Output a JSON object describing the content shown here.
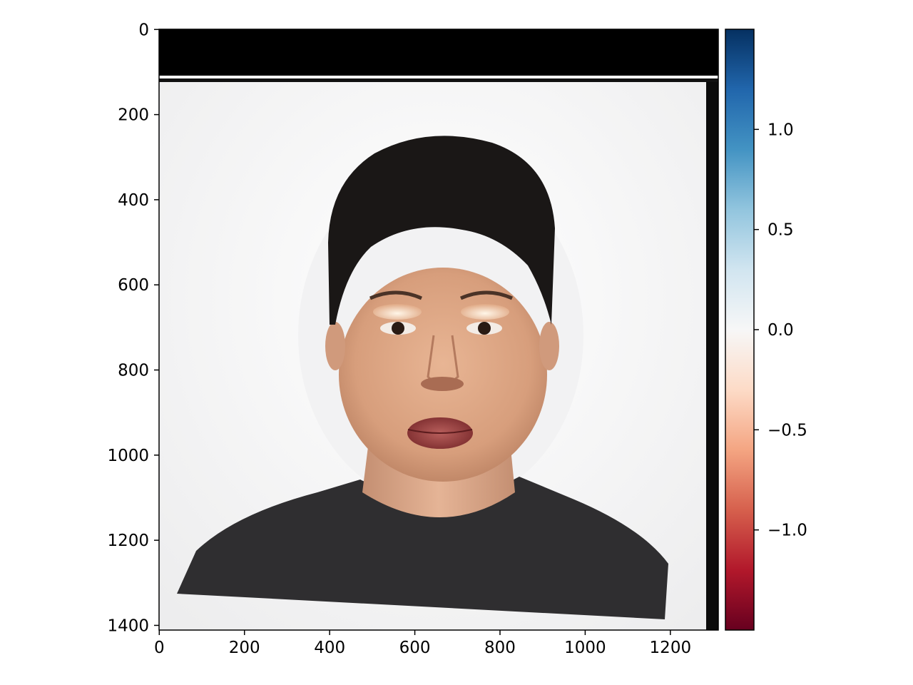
{
  "chart_data": {
    "type": "heatmap",
    "title": "",
    "xlabel": "",
    "ylabel": "",
    "x_ticks": [
      0,
      200,
      400,
      600,
      800,
      1000,
      1200
    ],
    "y_ticks": [
      0,
      200,
      400,
      600,
      800,
      1000,
      1200,
      1400
    ],
    "xlim": [
      -0.5,
      1312.5
    ],
    "ylim": [
      1411,
      -0.5
    ],
    "image": {
      "content": "portrait of a person with short dark hair in a dark grey top on a pale background",
      "black_band_rows": [
        0,
        112
      ],
      "white_line_row": 113,
      "dark_strip_columns": [
        1287,
        1312
      ]
    },
    "colorbar": {
      "colormap": "RdBu",
      "range": [
        -1.5,
        1.5
      ],
      "ticks": [
        1.0,
        0.5,
        0.0,
        -0.5,
        -1.0
      ],
      "tick_labels": [
        "1.0",
        "0.5",
        "0.0",
        "−0.5",
        "−1.0"
      ],
      "colors": [
        "#67001f",
        "#b2182b",
        "#d6604d",
        "#f4a582",
        "#fddbc7",
        "#f7f7f7",
        "#d1e5f0",
        "#92c5de",
        "#4393c3",
        "#2166ac",
        "#053061"
      ]
    }
  }
}
